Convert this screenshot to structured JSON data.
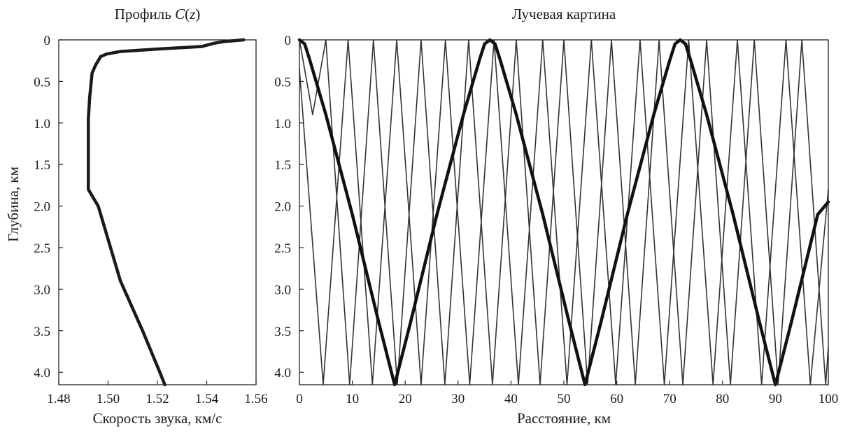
{
  "chart_data": [
    {
      "type": "line",
      "title": "Профиль C(z)",
      "title_parts": [
        "Профиль ",
        "C",
        "(",
        "z",
        ")"
      ],
      "xlabel": "Скорость звука, км/с",
      "ylabel": "Глубина, км",
      "xlim": [
        1.48,
        1.56
      ],
      "ylim": [
        0,
        4.15
      ],
      "y_inverted": true,
      "xticks": [
        "1.48",
        "1.50",
        "1.52",
        "1.54",
        "1.56"
      ],
      "yticks": [
        "0",
        "0.5",
        "1.0",
        "1.5",
        "2.0",
        "2.5",
        "3.0",
        "3.5",
        "4.0"
      ],
      "series": [
        {
          "color": "#1a1a1a",
          "points": [
            [
              1.555,
              0.0
            ],
            [
              1.547,
              0.02
            ],
            [
              1.543,
              0.04
            ],
            [
              1.538,
              0.08
            ],
            [
              1.52,
              0.11
            ],
            [
              1.505,
              0.14
            ],
            [
              1.4995,
              0.17
            ],
            [
              1.497,
              0.2
            ],
            [
              1.495,
              0.3
            ],
            [
              1.4935,
              0.4
            ],
            [
              1.4925,
              0.7
            ],
            [
              1.492,
              0.95
            ],
            [
              1.492,
              1.5
            ],
            [
              1.492,
              1.8
            ],
            [
              1.496,
              2.0
            ],
            [
              1.501,
              2.5
            ],
            [
              1.505,
              2.9
            ],
            [
              1.508,
              3.1
            ],
            [
              1.514,
              3.5
            ],
            [
              1.521,
              4.0
            ],
            [
              1.523,
              4.15
            ]
          ]
        }
      ]
    },
    {
      "type": "line",
      "title": "Лучевая картина",
      "xlabel": "Расстояние, км",
      "xlim": [
        0,
        100
      ],
      "ylim": [
        0,
        4.15
      ],
      "y_inverted": true,
      "xticks": [
        "0",
        "10",
        "20",
        "30",
        "40",
        "50",
        "60",
        "70",
        "80",
        "90",
        "100"
      ],
      "yticks": [
        "0",
        "0.5",
        "1.0",
        "1.5",
        "2.0",
        "2.5",
        "3.0",
        "3.5",
        "4.0"
      ],
      "series": [
        {
          "style": "thin",
          "color": "#333333",
          "points": [
            [
              0,
              0.35
            ],
            [
              4.5,
              4.15
            ],
            [
              9.2,
              0.0
            ],
            [
              13.8,
              4.15
            ],
            [
              18.4,
              0.0
            ],
            [
              23.0,
              4.15
            ],
            [
              27.6,
              0.0
            ],
            [
              32.2,
              4.15
            ],
            [
              36.8,
              0.0
            ],
            [
              41.4,
              4.15
            ],
            [
              46.0,
              0.0
            ],
            [
              50.6,
              4.15
            ],
            [
              55.2,
              0.0
            ],
            [
              59.8,
              4.15
            ],
            [
              64.4,
              0.0
            ],
            [
              69.0,
              4.15
            ],
            [
              73.6,
              0.0
            ],
            [
              78.2,
              4.15
            ],
            [
              82.8,
              0.0
            ],
            [
              87.4,
              4.15
            ],
            [
              92.0,
              0.0
            ],
            [
              96.6,
              4.15
            ],
            [
              100,
              1.8
            ]
          ]
        },
        {
          "style": "thin",
          "color": "#333333",
          "points": [
            [
              0,
              0.0
            ],
            [
              2.5,
              0.9
            ],
            [
              5.0,
              0.0
            ],
            [
              9.5,
              4.15
            ],
            [
              14.0,
              0.0
            ],
            [
              18.5,
              4.15
            ],
            [
              23.0,
              0.0
            ],
            [
              27.5,
              4.15
            ],
            [
              32.0,
              0.0
            ],
            [
              36.5,
              4.15
            ],
            [
              41.0,
              0.0
            ],
            [
              45.5,
              4.15
            ],
            [
              50.0,
              0.0
            ],
            [
              54.5,
              4.15
            ],
            [
              59.0,
              0.0
            ],
            [
              63.5,
              4.15
            ],
            [
              68.0,
              0.0
            ],
            [
              72.5,
              4.15
            ],
            [
              77.0,
              0.0
            ],
            [
              81.5,
              4.15
            ],
            [
              86.0,
              0.0
            ],
            [
              90.5,
              4.15
            ],
            [
              95.0,
              0.0
            ],
            [
              99.5,
              4.15
            ],
            [
              100,
              3.7
            ]
          ]
        },
        {
          "style": "thick",
          "color": "#111111",
          "points": [
            [
              0,
              0.0
            ],
            [
              1.0,
              0.05
            ],
            [
              2.0,
              0.25
            ],
            [
              5.0,
              0.9
            ],
            [
              10.0,
              2.1
            ],
            [
              15.0,
              3.4
            ],
            [
              18.0,
              4.15
            ],
            [
              21.0,
              3.4
            ],
            [
              26.0,
              2.1
            ],
            [
              31.0,
              0.9
            ],
            [
              34.0,
              0.25
            ],
            [
              35.0,
              0.05
            ],
            [
              36.0,
              0.0
            ],
            [
              37.0,
              0.05
            ],
            [
              38.0,
              0.25
            ],
            [
              41.0,
              0.9
            ],
            [
              46.0,
              2.1
            ],
            [
              51.0,
              3.4
            ],
            [
              54.0,
              4.15
            ],
            [
              57.0,
              3.4
            ],
            [
              62.0,
              2.1
            ],
            [
              67.0,
              0.9
            ],
            [
              70.0,
              0.25
            ],
            [
              71.0,
              0.05
            ],
            [
              72.0,
              0.0
            ],
            [
              73.0,
              0.05
            ],
            [
              74.0,
              0.25
            ],
            [
              77.0,
              0.9
            ],
            [
              82.0,
              2.1
            ],
            [
              87.0,
              3.4
            ],
            [
              90.0,
              4.15
            ],
            [
              93.0,
              3.4
            ],
            [
              98.0,
              2.1
            ],
            [
              100,
              1.95
            ]
          ]
        }
      ]
    }
  ]
}
